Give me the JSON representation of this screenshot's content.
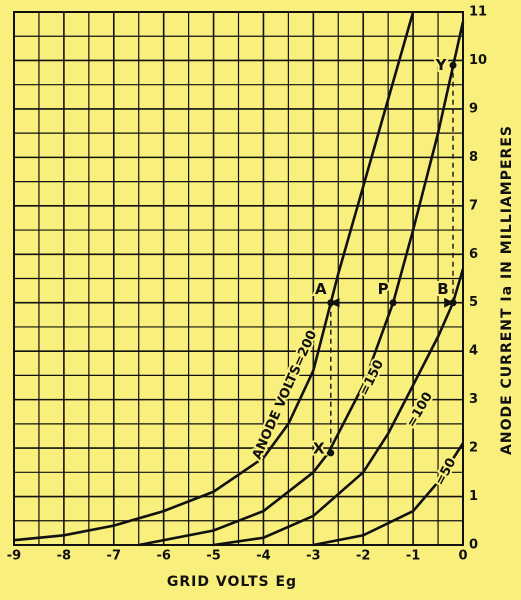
{
  "chart_data": {
    "type": "line",
    "x_label": "GRID VOLTS Eg",
    "y_label": "ANODE CURRENT Ia IN MILLIAMPERES",
    "xlim": [
      -9,
      0
    ],
    "ylim": [
      0,
      11
    ],
    "xticks": [
      -9,
      -8,
      -7,
      -6,
      -5,
      -4,
      -3,
      -2,
      -1,
      0
    ],
    "yticks": [
      0,
      1,
      2,
      3,
      4,
      5,
      6,
      7,
      8,
      9,
      10,
      11
    ],
    "grid": true,
    "series": [
      {
        "name": "ANODE VOLTS=200",
        "color": "#111111",
        "x": [
          -9,
          -8,
          -7,
          -6,
          -5,
          -4,
          -3.5,
          -3,
          -2.65,
          -2.5,
          -2,
          -1.5,
          -1
        ],
        "values": [
          0.1,
          0.2,
          0.4,
          0.7,
          1.1,
          1.8,
          2.5,
          3.6,
          5.0,
          5.6,
          7.4,
          9.2,
          11
        ]
      },
      {
        "name": "=150",
        "color": "#111111",
        "x": [
          -6.5,
          -5,
          -4,
          -3,
          -2.7,
          -2.5,
          -2,
          -1.4,
          -1,
          -0.5,
          0
        ],
        "values": [
          0,
          0.3,
          0.7,
          1.5,
          1.9,
          2.3,
          3.3,
          5.0,
          6.5,
          8.5,
          10.8
        ]
      },
      {
        "name": "=100",
        "color": "#111111",
        "x": [
          -5,
          -4,
          -3,
          -2,
          -1.5,
          -1,
          -0.5,
          -0.2,
          0
        ],
        "values": [
          0,
          0.15,
          0.6,
          1.5,
          2.3,
          3.3,
          4.3,
          5.0,
          5.7
        ]
      },
      {
        "name": "=50",
        "color": "#111111",
        "x": [
          -3,
          -2,
          -1,
          -0.5,
          0
        ],
        "values": [
          0,
          0.2,
          0.7,
          1.3,
          2.1
        ]
      }
    ],
    "points": [
      {
        "label": "A",
        "x": -2.65,
        "y": 5.0
      },
      {
        "label": "P",
        "x": -1.4,
        "y": 5.0
      },
      {
        "label": "B",
        "x": -0.2,
        "y": 5.0
      },
      {
        "label": "X",
        "x": -2.65,
        "y": 1.9
      },
      {
        "label": "Y",
        "x": -0.2,
        "y": 9.9
      }
    ]
  }
}
